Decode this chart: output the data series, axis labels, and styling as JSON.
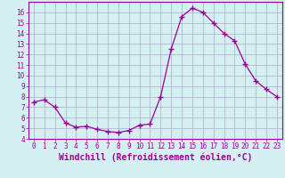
{
  "x": [
    0,
    1,
    2,
    3,
    4,
    5,
    6,
    7,
    8,
    9,
    10,
    11,
    12,
    13,
    14,
    15,
    16,
    17,
    18,
    19,
    20,
    21,
    22,
    23
  ],
  "y": [
    7.5,
    7.7,
    7.0,
    5.5,
    5.1,
    5.2,
    4.9,
    4.7,
    4.6,
    4.8,
    5.3,
    5.4,
    8.0,
    12.5,
    15.6,
    16.4,
    16.0,
    15.0,
    14.0,
    13.3,
    11.1,
    9.5,
    8.7,
    8.0
  ],
  "line_color": "#990099",
  "marker": "+",
  "marker_size": 4,
  "bg_color": "#d4f0f0",
  "grid_color": "#aaaacc",
  "xlabel": "Windchill (Refroidissement éolien,°C)",
  "ylabel_ticks": [
    4,
    5,
    6,
    7,
    8,
    9,
    10,
    11,
    12,
    13,
    14,
    15,
    16
  ],
  "xlim": [
    -0.5,
    23.5
  ],
  "ylim": [
    4,
    17
  ],
  "xticks": [
    0,
    1,
    2,
    3,
    4,
    5,
    6,
    7,
    8,
    9,
    10,
    11,
    12,
    13,
    14,
    15,
    16,
    17,
    18,
    19,
    20,
    21,
    22,
    23
  ],
  "tick_color": "#990099",
  "tick_fontsize": 5.5,
  "xlabel_fontsize": 7.0,
  "axis_label_color": "#990099"
}
